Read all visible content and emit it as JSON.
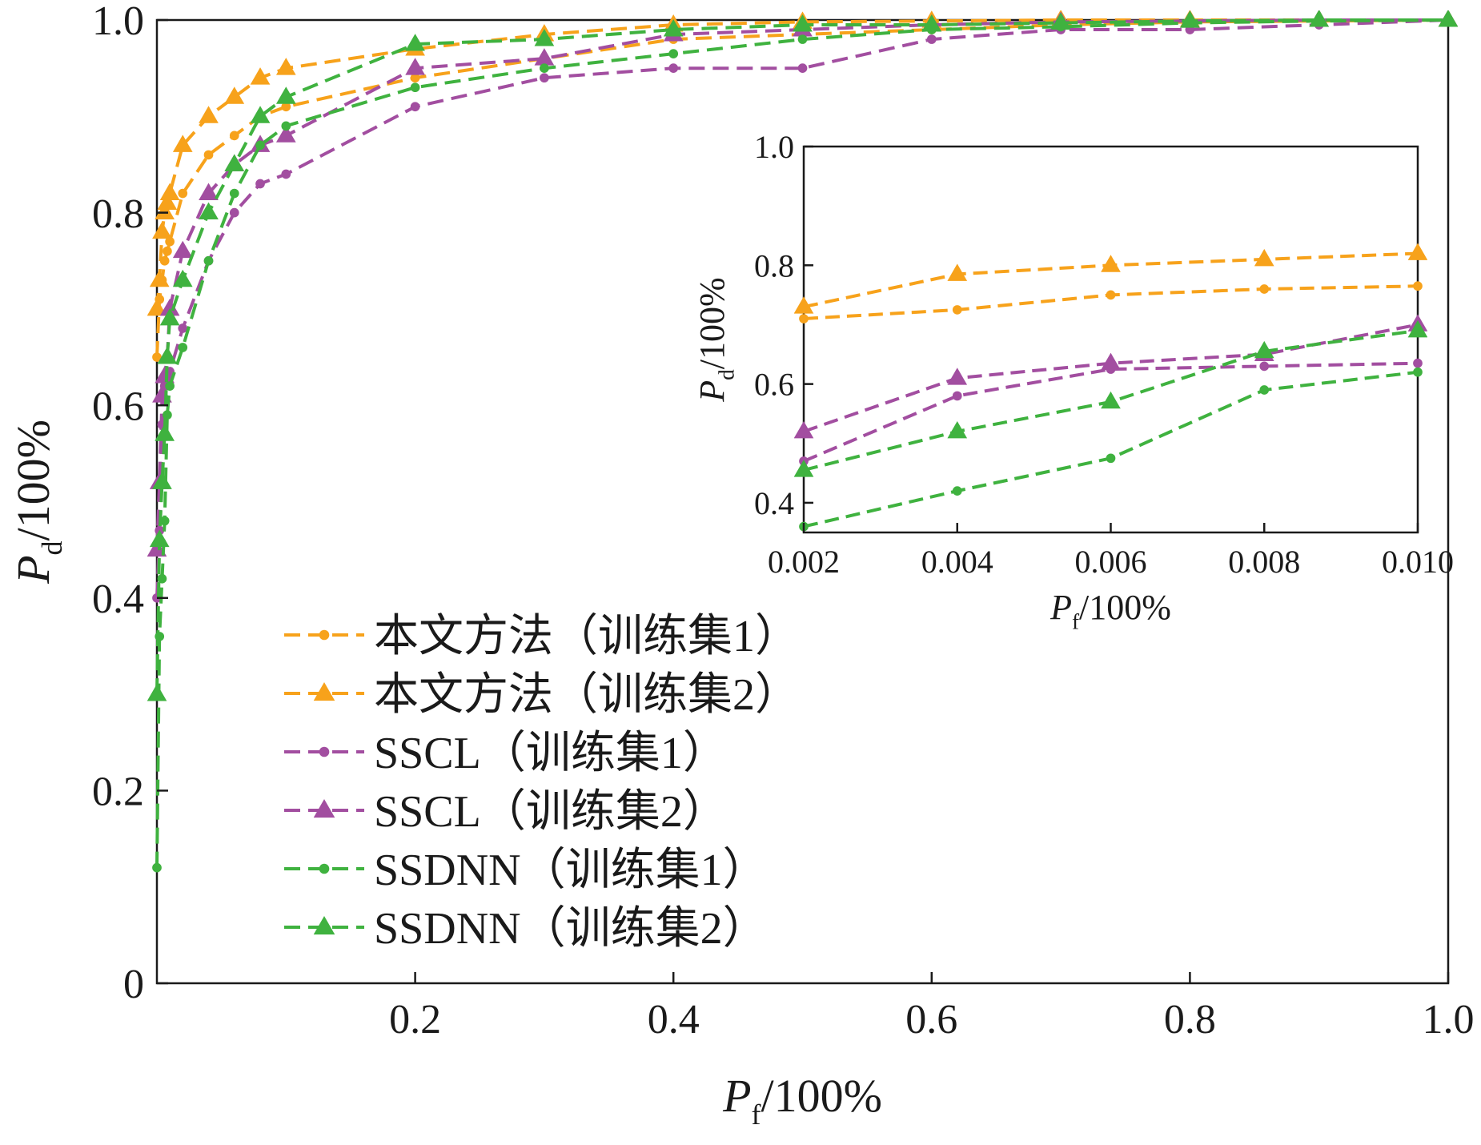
{
  "chart_data": [
    {
      "type": "line",
      "xlabel": "P_f/100%",
      "ylabel": "P_d/100%",
      "xlabel_parts": {
        "main": "P",
        "sub": "f",
        "rest": "/100%"
      },
      "ylabel_parts": {
        "main": "P",
        "sub": "d",
        "rest": "/100%"
      },
      "xlim": [
        0,
        1.0
      ],
      "ylim": [
        0,
        1.0
      ],
      "xticks": [
        0.2,
        0.4,
        0.6,
        0.8,
        1.0
      ],
      "xtick_labels": [
        "0.2",
        "0.4",
        "0.6",
        "0.8",
        "1.0"
      ],
      "yticks": [
        0,
        0.2,
        0.4,
        0.6,
        0.8,
        1.0
      ],
      "ytick_labels": [
        "0",
        "0.2",
        "0.4",
        "0.6",
        "0.8",
        "1.0"
      ],
      "grid": false,
      "legend_position": "lower-left",
      "series": [
        {
          "name": "本文方法（训练集1）",
          "color": "#F7A21B",
          "marker": "circle",
          "x": [
            0.0,
            0.002,
            0.004,
            0.006,
            0.008,
            0.01,
            0.02,
            0.04,
            0.06,
            0.08,
            0.1,
            0.2,
            0.3,
            0.4,
            0.5,
            0.6,
            0.7,
            0.8,
            0.9,
            1.0
          ],
          "y": [
            0.65,
            0.71,
            0.73,
            0.75,
            0.76,
            0.77,
            0.82,
            0.86,
            0.88,
            0.9,
            0.91,
            0.94,
            0.96,
            0.98,
            0.985,
            0.99,
            0.995,
            0.998,
            0.999,
            1.0
          ]
        },
        {
          "name": "本文方法（训练集2）",
          "color": "#F7A21B",
          "marker": "triangle",
          "x": [
            0.0,
            0.002,
            0.004,
            0.006,
            0.008,
            0.01,
            0.02,
            0.04,
            0.06,
            0.08,
            0.1,
            0.2,
            0.3,
            0.4,
            0.5,
            0.6,
            0.7,
            0.8,
            0.9,
            1.0
          ],
          "y": [
            0.7,
            0.73,
            0.78,
            0.8,
            0.81,
            0.82,
            0.87,
            0.9,
            0.92,
            0.94,
            0.95,
            0.97,
            0.985,
            0.995,
            0.998,
            0.999,
            1.0,
            1.0,
            1.0,
            1.0
          ]
        },
        {
          "name": "SSCL（训练集1）",
          "color": "#A24EA0",
          "marker": "circle",
          "x": [
            0.0,
            0.002,
            0.004,
            0.006,
            0.008,
            0.01,
            0.02,
            0.04,
            0.06,
            0.08,
            0.1,
            0.2,
            0.3,
            0.4,
            0.5,
            0.6,
            0.7,
            0.8,
            0.9,
            1.0
          ],
          "y": [
            0.4,
            0.47,
            0.58,
            0.62,
            0.63,
            0.635,
            0.68,
            0.75,
            0.8,
            0.83,
            0.84,
            0.91,
            0.94,
            0.95,
            0.95,
            0.98,
            0.99,
            0.99,
            0.995,
            1.0
          ]
        },
        {
          "name": "SSCL（训练集2）",
          "color": "#A24EA0",
          "marker": "triangle",
          "x": [
            0.0,
            0.002,
            0.004,
            0.006,
            0.008,
            0.01,
            0.02,
            0.04,
            0.06,
            0.08,
            0.1,
            0.2,
            0.3,
            0.4,
            0.5,
            0.6,
            0.7,
            0.8,
            0.9,
            1.0
          ],
          "y": [
            0.45,
            0.52,
            0.61,
            0.63,
            0.65,
            0.7,
            0.76,
            0.82,
            0.85,
            0.87,
            0.88,
            0.95,
            0.96,
            0.985,
            0.99,
            0.995,
            0.998,
            0.999,
            1.0,
            1.0
          ]
        },
        {
          "name": "SSDNN（训练集1）",
          "color": "#3FB23F",
          "marker": "circle",
          "x": [
            0.0,
            0.002,
            0.004,
            0.006,
            0.008,
            0.01,
            0.02,
            0.04,
            0.06,
            0.08,
            0.1,
            0.2,
            0.3,
            0.4,
            0.5,
            0.6,
            0.7,
            0.8,
            0.9,
            1.0
          ],
          "y": [
            0.12,
            0.36,
            0.42,
            0.48,
            0.59,
            0.62,
            0.66,
            0.75,
            0.82,
            0.87,
            0.89,
            0.93,
            0.95,
            0.965,
            0.98,
            0.99,
            0.993,
            0.997,
            0.999,
            1.0
          ]
        },
        {
          "name": "SSDNN（训练集2）",
          "color": "#3FB23F",
          "marker": "triangle",
          "x": [
            0.0,
            0.002,
            0.004,
            0.006,
            0.008,
            0.01,
            0.02,
            0.04,
            0.06,
            0.08,
            0.1,
            0.2,
            0.3,
            0.4,
            0.5,
            0.6,
            0.7,
            0.8,
            0.9,
            1.0
          ],
          "y": [
            0.3,
            0.46,
            0.52,
            0.57,
            0.65,
            0.69,
            0.73,
            0.8,
            0.85,
            0.9,
            0.92,
            0.975,
            0.98,
            0.99,
            0.995,
            0.995,
            0.997,
            0.999,
            1.0,
            1.0
          ]
        }
      ]
    },
    {
      "type": "line",
      "xlabel": "P_f/100%",
      "ylabel": "P_d/100%",
      "xlabel_parts": {
        "main": "P",
        "sub": "f",
        "rest": "/100%"
      },
      "ylabel_parts": {
        "main": "P",
        "sub": "d",
        "rest": "/100%"
      },
      "xlim": [
        0.002,
        0.01
      ],
      "ylim": [
        0.35,
        1.0
      ],
      "xticks": [
        0.002,
        0.004,
        0.006,
        0.008,
        0.01
      ],
      "xtick_labels": [
        "0.002",
        "0.004",
        "0.006",
        "0.008",
        "0.010"
      ],
      "yticks": [
        0.4,
        0.6,
        0.8,
        1.0
      ],
      "ytick_labels": [
        "0.4",
        "0.6",
        "0.8",
        "1.0"
      ],
      "grid": false,
      "note": "inset zoom of main plot",
      "series": [
        {
          "name": "本文方法（训练集1）",
          "color": "#F7A21B",
          "marker": "circle",
          "x": [
            0.002,
            0.004,
            0.006,
            0.008,
            0.01
          ],
          "y": [
            0.71,
            0.725,
            0.75,
            0.76,
            0.765
          ]
        },
        {
          "name": "本文方法（训练集2）",
          "color": "#F7A21B",
          "marker": "triangle",
          "x": [
            0.002,
            0.004,
            0.006,
            0.008,
            0.01
          ],
          "y": [
            0.73,
            0.785,
            0.8,
            0.81,
            0.82
          ]
        },
        {
          "name": "SSCL（训练集1）",
          "color": "#A24EA0",
          "marker": "circle",
          "x": [
            0.002,
            0.004,
            0.006,
            0.008,
            0.01
          ],
          "y": [
            0.47,
            0.58,
            0.625,
            0.63,
            0.635
          ]
        },
        {
          "name": "SSCL（训练集2）",
          "color": "#A24EA0",
          "marker": "triangle",
          "x": [
            0.002,
            0.004,
            0.006,
            0.008,
            0.01
          ],
          "y": [
            0.52,
            0.61,
            0.635,
            0.65,
            0.7
          ]
        },
        {
          "name": "SSDNN（训练集1）",
          "color": "#3FB23F",
          "marker": "circle",
          "x": [
            0.002,
            0.004,
            0.006,
            0.008,
            0.01
          ],
          "y": [
            0.36,
            0.42,
            0.475,
            0.59,
            0.62
          ]
        },
        {
          "name": "SSDNN（训练集2）",
          "color": "#3FB23F",
          "marker": "triangle",
          "x": [
            0.002,
            0.004,
            0.006,
            0.008,
            0.01
          ],
          "y": [
            0.455,
            0.52,
            0.57,
            0.655,
            0.69
          ]
        }
      ]
    }
  ]
}
